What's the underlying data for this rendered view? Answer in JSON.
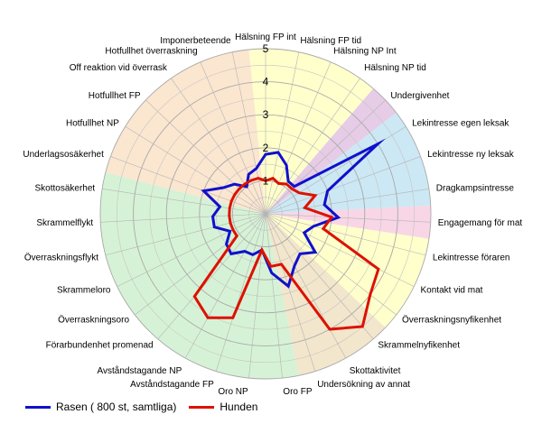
{
  "chart_data": {
    "type": "radar",
    "r_range": [
      0,
      5
    ],
    "ticks": [
      "1",
      "2",
      "3",
      "4",
      "5"
    ],
    "grid": true,
    "legend_position": "bottom-left",
    "categories": [
      "Hälsning FP int",
      "Hälsning FP tid",
      "Hälsning NP Int",
      "Hälsning NP tid",
      "Undergivenhet",
      "Lekintresse egen leksak",
      "Lekintresse ny leksak",
      "Dragkampsintresse",
      "Engagemang för mat",
      "Lekintresse föraren",
      "Kontakt vid mat",
      "Överraskningsnyfikenhet",
      "Skrammelnyfikenhet",
      "Skottaktivitet",
      "Undersökning av annat",
      "Oro FP",
      "Oro NP",
      "Avståndstagande FP",
      "Avståndstagande NP",
      "Förarbundenhet promenad",
      "Överraskningsoro",
      "Skrammeloro",
      "Överraskningsflykt",
      "Skrammelflykt",
      "Skottosäkerhet",
      "Underlagsosäkerhet",
      "Hotfullhet NP",
      "Hotfullhet FP",
      "Off reaktion vid överrask",
      "Hotfullhet överraskning",
      "Imponerbeteende"
    ],
    "series": [
      {
        "name": "Rasen ( 800 st, samtliga)",
        "color": "#1010cc",
        "values": [
          1.8,
          1.9,
          1.6,
          1.2,
          1.2,
          4.0,
          2.0,
          1.8,
          2.2,
          1.5,
          1.3,
          1.9,
          1.6,
          1.8,
          2.3,
          1.8,
          1.1,
          1.3,
          1.3,
          1.6,
          1.5,
          1.2,
          1.6,
          1.6,
          1.4,
          2.0,
          1.5,
          1.3,
          1.0,
          1.3,
          1.4
        ]
      },
      {
        "name": "Hunden",
        "color": "#dd1100",
        "values": [
          1.0,
          1.1,
          1.0,
          1.1,
          1.1,
          1.2,
          1.6,
          1.2,
          2.0,
          1.8,
          3.8,
          4.0,
          4.5,
          4.0,
          1.6,
          1.6,
          1.1,
          3.3,
          3.6,
          3.3,
          1.1,
          1.1,
          1.1,
          1.1,
          1.1,
          1.1,
          1.1,
          1.1,
          1.1,
          1.1,
          1.1
        ]
      }
    ],
    "sectors": [
      {
        "from": 0,
        "to": 4,
        "color": "#ffffcc"
      },
      {
        "from": 4,
        "to": 5,
        "color": "#e6cce6"
      },
      {
        "from": 5,
        "to": 8,
        "color": "#cce8f4"
      },
      {
        "from": 8,
        "to": 9,
        "color": "#f8d6e6"
      },
      {
        "from": 9,
        "to": 12,
        "color": "#ffffcc"
      },
      {
        "from": 12,
        "to": 15,
        "color": "#f2e6cc"
      },
      {
        "from": 15,
        "to": 25,
        "color": "#d6f2d6"
      },
      {
        "from": 25,
        "to": 31,
        "color": "#fbe6d0"
      }
    ]
  }
}
